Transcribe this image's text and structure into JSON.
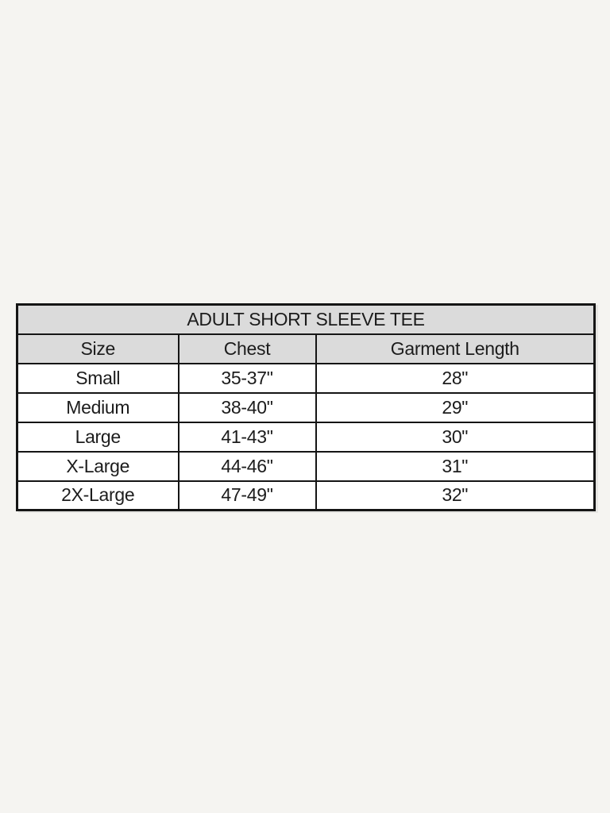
{
  "colors": {
    "page_bg": "#f5f4f1",
    "header_bg": "#dbdbdb",
    "row_bg": "#ffffff",
    "border": "#151515",
    "text": "#1c1c1c"
  },
  "chart_data": {
    "type": "table",
    "title": "ADULT SHORT SLEEVE TEE",
    "columns": [
      "Size",
      "Chest",
      "Garment Length"
    ],
    "rows": [
      [
        "Small",
        "35-37\"",
        "28\""
      ],
      [
        "Medium",
        "38-40\"",
        "29\""
      ],
      [
        "Large",
        "41-43\"",
        "30\""
      ],
      [
        "X-Large",
        "44-46\"",
        "31\""
      ],
      [
        "2X-Large",
        "47-49\"",
        "32\""
      ]
    ]
  }
}
